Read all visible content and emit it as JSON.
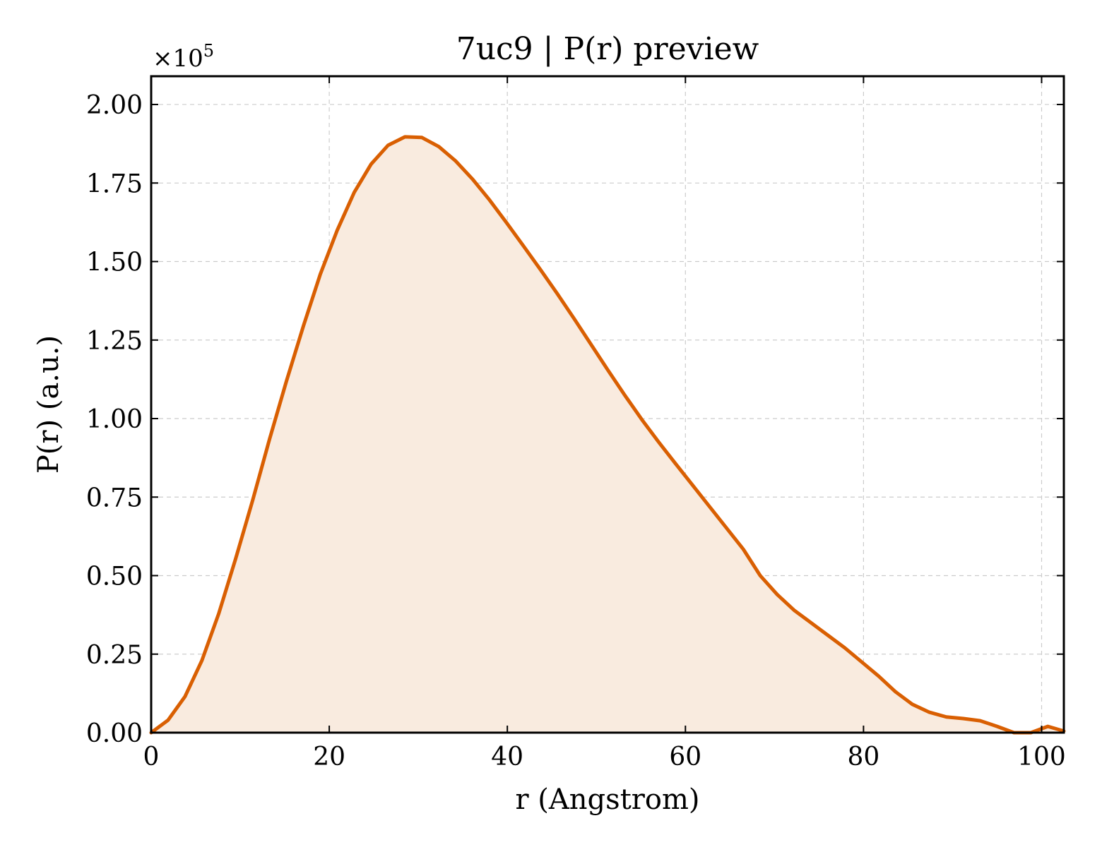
{
  "chart_data": {
    "type": "area",
    "title": "7uc9 | P(r) preview",
    "xlabel": "r (Angstrom)",
    "ylabel": "P(r) (a.u.)",
    "y_multiplier_base": "×10",
    "y_multiplier_exp": "5",
    "xlim": [
      0,
      102.5
    ],
    "ylim": [
      0,
      2.09
    ],
    "y_scale_factor": 100000,
    "grid": true,
    "line_color": "#d95f02",
    "fill_color": "#f9ebdf",
    "x_ticks": [
      0,
      20,
      40,
      60,
      80,
      100
    ],
    "x_tick_labels": [
      "0",
      "20",
      "40",
      "60",
      "80",
      "100"
    ],
    "y_ticks": [
      0,
      0.25,
      0.5,
      0.75,
      1.0,
      1.25,
      1.5,
      1.75,
      2.0
    ],
    "y_tick_labels": [
      "0.00",
      "0.25",
      "0.50",
      "0.75",
      "1.00",
      "1.25",
      "1.50",
      "1.75",
      "2.00"
    ],
    "series": [
      {
        "x": [
          0,
          1.9,
          3.8,
          5.7,
          7.6,
          9.5,
          11.4,
          13.3,
          15.2,
          17.1,
          19.0,
          20.9,
          22.8,
          24.7,
          26.6,
          28.5,
          30.4,
          32.3,
          34.2,
          36.1,
          38.0,
          39.9,
          41.8,
          43.7,
          45.6,
          47.5,
          49.4,
          51.3,
          53.2,
          55.1,
          57.0,
          58.9,
          60.8,
          62.7,
          64.6,
          66.5,
          68.4,
          70.3,
          72.2,
          74.1,
          76.0,
          77.9,
          79.8,
          81.7,
          83.6,
          85.5,
          87.4,
          89.3,
          91.2,
          93.1,
          95.0,
          96.9,
          98.8,
          100.7,
          102.5
        ],
        "y": [
          0.0,
          0.04,
          0.115,
          0.23,
          0.38,
          0.555,
          0.74,
          0.935,
          1.12,
          1.295,
          1.46,
          1.6,
          1.72,
          1.81,
          1.87,
          1.897,
          1.895,
          1.866,
          1.82,
          1.762,
          1.696,
          1.624,
          1.55,
          1.475,
          1.398,
          1.318,
          1.236,
          1.154,
          1.074,
          0.997,
          0.925,
          0.856,
          0.788,
          0.72,
          0.652,
          0.584,
          0.5,
          0.44,
          0.39,
          0.35,
          0.31,
          0.27,
          0.225,
          0.18,
          0.13,
          0.09,
          0.065,
          0.05,
          0.045,
          0.038,
          0.02,
          0.0,
          0.0,
          0.02,
          0.005
        ]
      }
    ]
  }
}
